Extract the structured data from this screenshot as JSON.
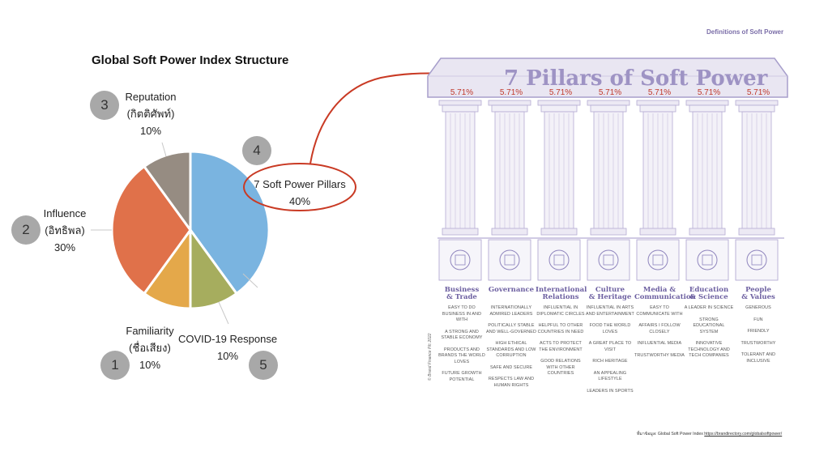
{
  "title": "Global Soft Power Index Structure",
  "chart_data": {
    "type": "pie",
    "categories": [
      "7 Soft Power Pillars",
      "COVID-19 Response",
      "Familiarity (ชื่อเสียง)",
      "Influence (อิทธิพล)",
      "Reputation (กิตติศัพท์)"
    ],
    "values": [
      40,
      10,
      10,
      30,
      10
    ],
    "colors": [
      "#7ab4e0",
      "#a6ad5e",
      "#e4a84a",
      "#e0714a",
      "#968c82"
    ]
  },
  "segments": [
    {
      "num": "4",
      "line1": "7 Soft Power Pillars",
      "line2": "",
      "pct": "40%"
    },
    {
      "num": "5",
      "line1": "COVID-19 Response",
      "line2": "",
      "pct": "10%"
    },
    {
      "num": "1",
      "line1": "Familiarity",
      "line2": "(ชื่อเสียง)",
      "pct": "10%"
    },
    {
      "num": "2",
      "line1": "Influence",
      "line2": "(อิทธิพล)",
      "pct": "30%"
    },
    {
      "num": "3",
      "line1": "Reputation",
      "line2": "(กิตติศัพท์)",
      "pct": "10%"
    }
  ],
  "definitions_title": "Definitions of Soft Power",
  "temple_title": "7 Pillars of Soft Power",
  "pillars": [
    {
      "pct": "5.71%",
      "name": [
        "Business",
        "& Trade"
      ],
      "icon": "handshake-icon",
      "items": [
        "EASY TO DO BUSINESS IN AND WITH",
        "A STRONG AND STABLE ECONOMY",
        "PRODUCTS AND BRANDS THE WORLD LOVES",
        "FUTURE GROWTH POTENTIAL"
      ]
    },
    {
      "pct": "5.71%",
      "name": [
        "Governance",
        ""
      ],
      "icon": "capitol-icon",
      "items": [
        "INTERNATIONALLY ADMIRED LEADERS",
        "POLITICALLY STABLE AND WELL-GOVERNED",
        "HIGH ETHICAL STANDARDS AND LOW CORRUPTION",
        "SAFE AND SECURE",
        "RESPECTS LAW AND HUMAN RIGHTS"
      ]
    },
    {
      "pct": "5.71%",
      "name": [
        "International",
        "Relations"
      ],
      "icon": "globe-dove-icon",
      "items": [
        "INFLUENTIAL IN DIPLOMATIC CIRCLES",
        "HELPFUL TO OTHER COUNTRIES IN NEED",
        "ACTS TO PROTECT THE ENVIRONMENT",
        "GOOD RELATIONS WITH OTHER COUNTRIES"
      ]
    },
    {
      "pct": "5.71%",
      "name": [
        "Culture",
        "& Heritage"
      ],
      "icon": "temple-icon",
      "items": [
        "INFLUENTIAL IN ARTS AND ENTERTAINMENT",
        "FOOD THE WORLD LOVES",
        "A GREAT PLACE TO VISIT",
        "RICH HERITAGE",
        "AN APPEALING LIFESTYLE",
        "LEADERS IN SPORTS"
      ]
    },
    {
      "pct": "5.71%",
      "name": [
        "Media &",
        "Communication"
      ],
      "icon": "tv-icon",
      "items": [
        "EASY TO COMMUNICATE WITH",
        "AFFAIRS I FOLLOW CLOSELY",
        "INFLUENTIAL MEDIA",
        "TRUSTWORTHY MEDIA"
      ]
    },
    {
      "pct": "5.71%",
      "name": [
        "Education",
        "& Science"
      ],
      "icon": "microscope-icon",
      "items": [
        "A LEADER IN SCIENCE",
        "STRONG EDUCATIONAL SYSTEM",
        "INNOVATIVE TECHNOLOGY AND TECH COMPANIES"
      ]
    },
    {
      "pct": "5.71%",
      "name": [
        "People",
        "& Values"
      ],
      "icon": "people-icon",
      "items": [
        "GENEROUS",
        "FUN",
        "FRIENDLY",
        "TRUSTWORTHY",
        "TOLERANT AND INCLUSIVE"
      ]
    }
  ],
  "copyright": "© Brand Finance Plc 2022",
  "source_prefix": "ที่มาข้อมูล: Global Soft Power Index",
  "source_link": "https://brandirectory.com/globalsoftpower/"
}
